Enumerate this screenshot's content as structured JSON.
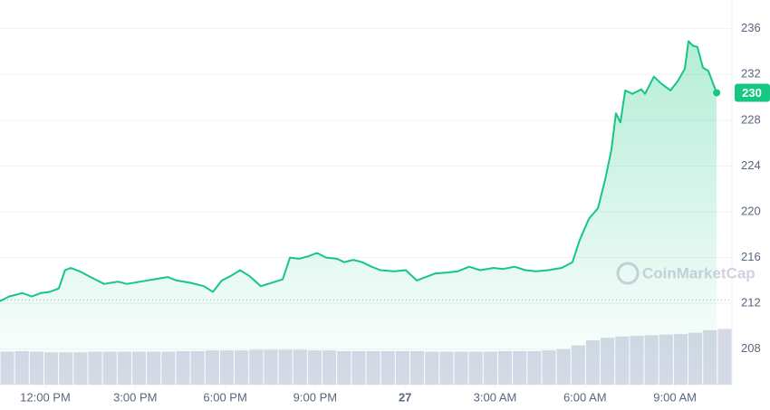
{
  "chart_data": {
    "type": "line",
    "x": [
      -1.51,
      -1.21,
      -0.76,
      -0.45,
      -0.15,
      0.15,
      0.45,
      0.66,
      0.85,
      1.15,
      1.51,
      1.96,
      2.42,
      2.72,
      3.17,
      3.63,
      4.08,
      4.38,
      4.83,
      5.29,
      5.59,
      5.89,
      6.19,
      6.5,
      6.8,
      7.19,
      7.55,
      7.92,
      8.16,
      8.46,
      8.76,
      9.06,
      9.37,
      9.73,
      9.97,
      10.27,
      10.57,
      10.88,
      11.18,
      11.63,
      12.02,
      12.39,
      12.69,
      12.99,
      13.44,
      13.75,
      14.14,
      14.5,
      14.95,
      15.26,
      15.65,
      16.01,
      16.37,
      16.77,
      17.22,
      17.58,
      17.82,
      18.13,
      18.43,
      18.67,
      18.88,
      19.03,
      19.18,
      19.34,
      19.58,
      19.88,
      20.0,
      20.3,
      20.54,
      20.85,
      21.09,
      21.33,
      21.45,
      21.6,
      21.75,
      21.93,
      22.11,
      22.39
    ],
    "series": [
      {
        "color": "#16c784",
        "values": [
          212.2,
          212.6,
          212.9,
          212.6,
          212.9,
          213.0,
          213.3,
          214.9,
          215.1,
          214.8,
          214.3,
          213.7,
          213.9,
          213.7,
          213.9,
          214.1,
          214.3,
          214.0,
          213.8,
          213.5,
          213.0,
          214.0,
          214.4,
          214.9,
          214.4,
          213.5,
          213.8,
          214.1,
          216.0,
          215.9,
          216.1,
          216.4,
          216.0,
          215.9,
          215.6,
          215.8,
          215.6,
          215.2,
          214.9,
          214.8,
          214.9,
          214.0,
          214.3,
          214.6,
          214.7,
          214.8,
          215.2,
          214.9,
          215.1,
          215.0,
          215.2,
          214.9,
          214.8,
          214.9,
          215.1,
          215.6,
          217.5,
          219.4,
          220.3,
          222.8,
          225.4,
          228.6,
          227.8,
          230.6,
          230.3,
          230.7,
          230.3,
          231.8,
          231.2,
          230.6,
          231.4,
          232.5,
          234.9,
          234.5,
          234.4,
          232.6,
          232.3,
          230.4
        ]
      }
    ],
    "open": 212.3,
    "price_tag": "230",
    "xlim": [
      -1.51,
      22.9
    ],
    "xticks": [
      {
        "value": 0,
        "label": "12:00 PM"
      },
      {
        "value": 3,
        "label": "3:00 PM"
      },
      {
        "value": 6,
        "label": "6:00 PM"
      },
      {
        "value": 9,
        "label": "9:00 PM"
      },
      {
        "value": 12,
        "label": "27"
      },
      {
        "value": 15,
        "label": "3:00 AM"
      },
      {
        "value": 18,
        "label": "6:00 AM"
      },
      {
        "value": 21,
        "label": "9:00 AM"
      }
    ],
    "ylim": [
      204.9,
      238.5
    ],
    "yticks": [
      208,
      212,
      216,
      220,
      224,
      228,
      232,
      236
    ],
    "grid": true,
    "volume": {
      "color": "#d5d9e6",
      "ylim": [
        0,
        100
      ],
      "values": [
        52,
        53,
        52,
        51,
        51,
        51,
        52,
        52,
        52,
        52,
        52,
        52,
        53,
        53,
        54,
        54,
        54,
        55,
        55,
        55,
        55,
        54,
        54,
        53,
        53,
        53,
        53,
        53,
        53,
        52,
        52,
        52,
        52,
        52,
        53,
        53,
        53,
        54,
        56,
        62,
        70,
        74,
        76,
        77,
        78,
        79,
        80,
        82,
        86,
        88
      ]
    },
    "watermark": "CoinMarketCap"
  }
}
